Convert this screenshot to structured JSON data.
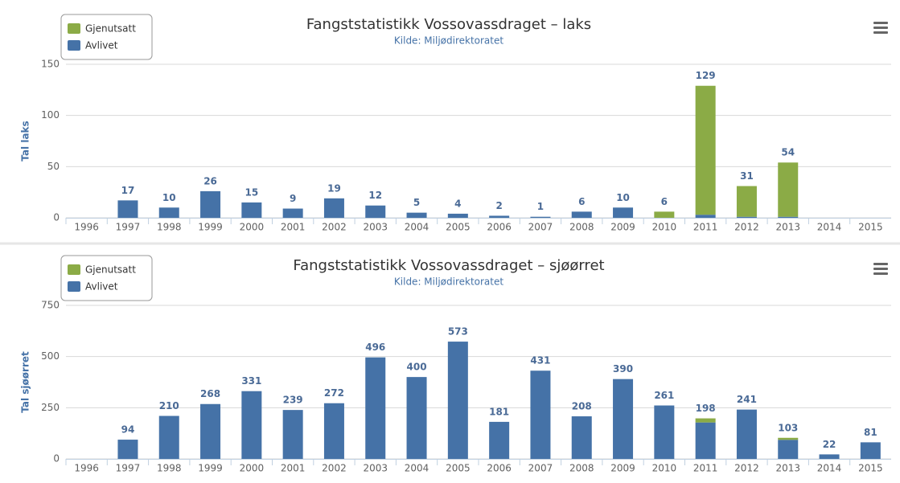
{
  "chart_data": [
    {
      "type": "bar",
      "stacked": true,
      "title": "Fangststatistikk Vossovassdraget – laks",
      "subtitle": "Kilde: Miljødirektoratet",
      "y_label": "Tal laks",
      "categories": [
        "1996",
        "1997",
        "1998",
        "1999",
        "2000",
        "2001",
        "2002",
        "2003",
        "2004",
        "2005",
        "2006",
        "2007",
        "2008",
        "2009",
        "2010",
        "2011",
        "2012",
        "2013",
        "2014",
        "2015"
      ],
      "series": [
        {
          "name": "Gjenutsatt",
          "color": "#8bab46",
          "values": [
            0,
            0,
            0,
            0,
            0,
            0,
            0,
            0,
            0,
            0,
            0,
            0,
            0,
            0,
            6,
            126,
            30,
            53,
            0,
            0
          ]
        },
        {
          "name": "Avlivet",
          "color": "#4572a7",
          "values": [
            0,
            17,
            10,
            26,
            15,
            9,
            19,
            12,
            5,
            4,
            2,
            1,
            6,
            10,
            0,
            3,
            1,
            1,
            0,
            0
          ]
        }
      ],
      "totals": [
        null,
        17,
        10,
        26,
        15,
        9,
        19,
        12,
        5,
        4,
        2,
        1,
        6,
        10,
        6,
        129,
        31,
        54,
        null,
        null
      ],
      "ylim": [
        0,
        150
      ],
      "yticks": [
        0,
        50,
        100,
        150
      ],
      "grid": true,
      "legend": "top-left"
    },
    {
      "type": "bar",
      "stacked": true,
      "title": "Fangststatistikk Vossovassdraget – sjøørret",
      "subtitle": "Kilde: Miljødirektoratet",
      "y_label": "Tal sjøørret",
      "categories": [
        "1996",
        "1997",
        "1998",
        "1999",
        "2000",
        "2001",
        "2002",
        "2003",
        "2004",
        "2005",
        "2006",
        "2007",
        "2008",
        "2009",
        "2010",
        "2011",
        "2012",
        "2013",
        "2014",
        "2015"
      ],
      "series": [
        {
          "name": "Gjenutsatt",
          "color": "#8bab46",
          "values": [
            0,
            0,
            0,
            0,
            0,
            0,
            0,
            0,
            0,
            0,
            0,
            0,
            0,
            0,
            0,
            20,
            0,
            10,
            0,
            0
          ]
        },
        {
          "name": "Avlivet",
          "color": "#4572a7",
          "values": [
            0,
            94,
            210,
            268,
            331,
            239,
            272,
            496,
            400,
            573,
            181,
            431,
            208,
            390,
            261,
            178,
            241,
            93,
            22,
            81
          ]
        }
      ],
      "totals": [
        null,
        94,
        210,
        268,
        331,
        239,
        272,
        496,
        400,
        573,
        181,
        431,
        208,
        390,
        261,
        198,
        241,
        103,
        22,
        81
      ],
      "ylim": [
        0,
        750
      ],
      "yticks": [
        0,
        250,
        500,
        750
      ],
      "grid": true,
      "legend": "top-left"
    }
  ]
}
